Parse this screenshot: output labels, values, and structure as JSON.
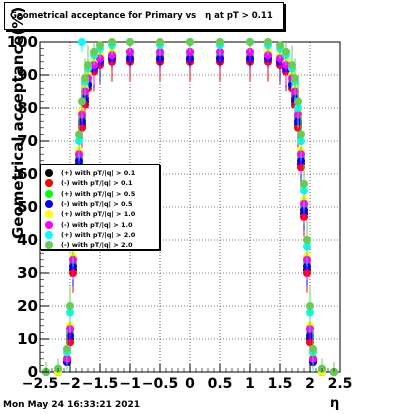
{
  "title": "Geometrical acceptance for Primary vs   η at pT > 0.11",
  "ylabel": "Geometrical acceptance(%)",
  "xlabel": "η",
  "datestamp": "Mon May 24 16:33:21 2021",
  "chart_data": {
    "type": "scatter",
    "title": "Geometrical acceptance for Primary vs   η at pT > 0.11",
    "xlabel": "η",
    "ylabel": "Geometrical acceptance(%)",
    "xlim": [
      -2.5,
      2.5
    ],
    "ylim": [
      0,
      100
    ],
    "x_ticks": [
      "−2.5",
      "−2",
      "−1.5",
      "−1",
      "−0.5",
      "0",
      "0.5",
      "1",
      "1.5",
      "2",
      "2.5"
    ],
    "y_ticks": [
      "0",
      "10",
      "20",
      "30",
      "40",
      "50",
      "60",
      "70",
      "80",
      "90",
      "100"
    ],
    "grid": true,
    "legend_position": "middle-left",
    "legend": [
      {
        "label": "(+) with pT/|q| > 0.1",
        "color": "#000000"
      },
      {
        "label": "(-) with pT/|q| > 0.1",
        "color": "#ff0000"
      },
      {
        "label": "(+) with pT/|q| > 0.5",
        "color": "#00ff00"
      },
      {
        "label": "(-) with pT/|q| > 0.5",
        "color": "#0000ff"
      },
      {
        "label": "(+) with pT/|q| > 1.0",
        "color": "#ffff00"
      },
      {
        "label": "(-) with pT/|q| > 1.0",
        "color": "#ff00ff"
      },
      {
        "label": "(+) with pT/|q| > 2.0",
        "color": "#00ffff"
      },
      {
        "label": "(-) with pT/|q| > 2.0",
        "color": "#66cc55"
      }
    ],
    "series": [
      {
        "name": "(+) with pT/|q| > 0.1",
        "color": "#000000",
        "x": [
          -2.4,
          -2.2,
          -2.05,
          -2.0,
          -1.95,
          -1.9,
          -1.85,
          -1.8,
          -1.75,
          -1.7,
          -1.6,
          -1.5,
          -1.3,
          -1.0,
          -0.5,
          0,
          0.5,
          1.0,
          1.3,
          1.5,
          1.6,
          1.7,
          1.75,
          1.8,
          1.85,
          1.9,
          1.95,
          2.0,
          2.05,
          2.2,
          2.4
        ],
        "y": [
          0,
          0,
          3,
          10,
          31,
          48,
          63,
          75,
          82,
          87,
          92,
          94,
          95,
          95,
          95,
          95,
          95,
          95,
          95,
          94,
          92,
          87,
          82,
          75,
          63,
          48,
          31,
          10,
          3,
          0,
          0
        ]
      },
      {
        "name": "(-) with pT/|q| > 0.1",
        "color": "#ff0000",
        "x": [
          -2.4,
          -2.2,
          -2.05,
          -2.0,
          -1.95,
          -1.9,
          -1.85,
          -1.8,
          -1.75,
          -1.7,
          -1.6,
          -1.5,
          -1.3,
          -1.0,
          -0.5,
          0,
          0.5,
          1.0,
          1.3,
          1.5,
          1.6,
          1.7,
          1.75,
          1.8,
          1.85,
          1.9,
          1.95,
          2.0,
          2.05,
          2.2,
          2.4
        ],
        "y": [
          0,
          0,
          3,
          9,
          30,
          47,
          62,
          74,
          81,
          86,
          91,
          93,
          94,
          94,
          94,
          94,
          94,
          94,
          94,
          93,
          91,
          86,
          81,
          74,
          62,
          47,
          30,
          9,
          3,
          0,
          0
        ]
      },
      {
        "name": "(+) with pT/|q| > 0.5",
        "color": "#00ff00",
        "x": [
          -2.4,
          -2.2,
          -2.05,
          -2.0,
          -1.95,
          -1.9,
          -1.85,
          -1.8,
          -1.75,
          -1.7,
          -1.6,
          -1.5,
          -1.3,
          -1.0,
          -0.5,
          0,
          0.5,
          1.0,
          1.3,
          1.5,
          1.6,
          1.7,
          1.75,
          1.8,
          1.85,
          1.9,
          1.95,
          2.0,
          2.05,
          2.2,
          2.4
        ],
        "y": [
          0,
          0,
          4,
          12,
          33,
          50,
          65,
          77,
          84,
          88,
          93,
          95,
          96,
          96,
          96,
          96,
          96,
          96,
          96,
          95,
          93,
          88,
          84,
          77,
          65,
          50,
          33,
          12,
          4,
          0,
          0
        ]
      },
      {
        "name": "(-) with pT/|q| > 0.5",
        "color": "#0000ff",
        "x": [
          -2.4,
          -2.2,
          -2.05,
          -2.0,
          -1.95,
          -1.9,
          -1.85,
          -1.8,
          -1.75,
          -1.7,
          -1.6,
          -1.5,
          -1.3,
          -1.0,
          -0.5,
          0,
          0.5,
          1.0,
          1.3,
          1.5,
          1.6,
          1.7,
          1.75,
          1.8,
          1.85,
          1.9,
          1.95,
          2.0,
          2.05,
          2.2,
          2.4
        ],
        "y": [
          0,
          0,
          3,
          11,
          32,
          49,
          64,
          76,
          83,
          87,
          92,
          94,
          95,
          95,
          95,
          95,
          95,
          95,
          95,
          94,
          92,
          87,
          83,
          76,
          64,
          49,
          32,
          11,
          3,
          0,
          0
        ]
      },
      {
        "name": "(+) with pT/|q| > 1.0",
        "color": "#ffff00",
        "x": [
          -2.4,
          -2.2,
          -2.05,
          -2.0,
          -1.95,
          -1.9,
          -1.85,
          -1.8,
          -1.75,
          -1.7,
          -1.6,
          -1.5,
          -1.3,
          -1.0,
          -0.5,
          0,
          0.5,
          1.0,
          1.3,
          1.5,
          1.6,
          1.7,
          1.75,
          1.8,
          1.85,
          1.9,
          1.95,
          2.0,
          2.05,
          2.2,
          2.4
        ],
        "y": [
          0,
          0,
          5,
          14,
          35,
          52,
          67,
          79,
          86,
          90,
          94,
          96,
          97,
          97,
          97,
          97,
          97,
          97,
          97,
          96,
          94,
          90,
          86,
          79,
          67,
          52,
          35,
          14,
          5,
          0,
          0
        ]
      },
      {
        "name": "(-) with pT/|q| > 1.0",
        "color": "#ff00ff",
        "x": [
          -2.4,
          -2.2,
          -2.05,
          -2.0,
          -1.95,
          -1.9,
          -1.85,
          -1.8,
          -1.75,
          -1.7,
          -1.6,
          -1.5,
          -1.3,
          -1.0,
          -0.5,
          0,
          0.5,
          1.0,
          1.3,
          1.5,
          1.6,
          1.7,
          1.75,
          1.8,
          1.85,
          1.9,
          1.95,
          2.0,
          2.05,
          2.2,
          2.4
        ],
        "y": [
          0,
          1,
          4,
          13,
          34,
          51,
          66,
          78,
          85,
          89,
          93,
          95,
          96,
          97,
          97,
          97,
          97,
          97,
          96,
          95,
          93,
          89,
          85,
          78,
          66,
          51,
          34,
          13,
          4,
          1,
          0
        ]
      },
      {
        "name": "(+) with pT/|q| > 2.0",
        "color": "#00ffff",
        "x": [
          -2.4,
          -2.2,
          -2.05,
          -2.0,
          -1.95,
          -1.9,
          -1.85,
          -1.8,
          -1.75,
          -1.7,
          -1.6,
          -1.5,
          -1.3,
          -1.0,
          -0.5,
          0,
          0.5,
          1.0,
          1.3,
          1.5,
          1.6,
          1.7,
          1.75,
          1.8,
          1.85,
          1.9,
          1.95,
          2.0,
          2.05,
          2.2,
          2.4
        ],
        "y": [
          0,
          1,
          6,
          18,
          38,
          55,
          70,
          100,
          88,
          92,
          96,
          98,
          99,
          100,
          99,
          100,
          99,
          100,
          99,
          98,
          96,
          92,
          88,
          80,
          70,
          55,
          38,
          18,
          6,
          1,
          0
        ]
      },
      {
        "name": "(-) with pT/|q| > 2.0",
        "color": "#66cc55",
        "x": [
          -2.4,
          -2.2,
          -2.05,
          -2.0,
          -1.95,
          -1.9,
          -1.85,
          -1.8,
          -1.75,
          -1.7,
          -1.6,
          -1.5,
          -1.3,
          -1.0,
          -0.5,
          0,
          0.5,
          1.0,
          1.3,
          1.5,
          1.6,
          1.7,
          1.75,
          1.8,
          1.85,
          1.9,
          1.95,
          2.0,
          2.05,
          2.2,
          2.4
        ],
        "y": [
          0,
          1,
          7,
          20,
          40,
          57,
          72,
          82,
          89,
          93,
          97,
          99,
          100,
          100,
          100,
          100,
          100,
          100,
          100,
          99,
          97,
          93,
          89,
          82,
          72,
          57,
          40,
          20,
          7,
          1,
          0
        ]
      }
    ]
  }
}
